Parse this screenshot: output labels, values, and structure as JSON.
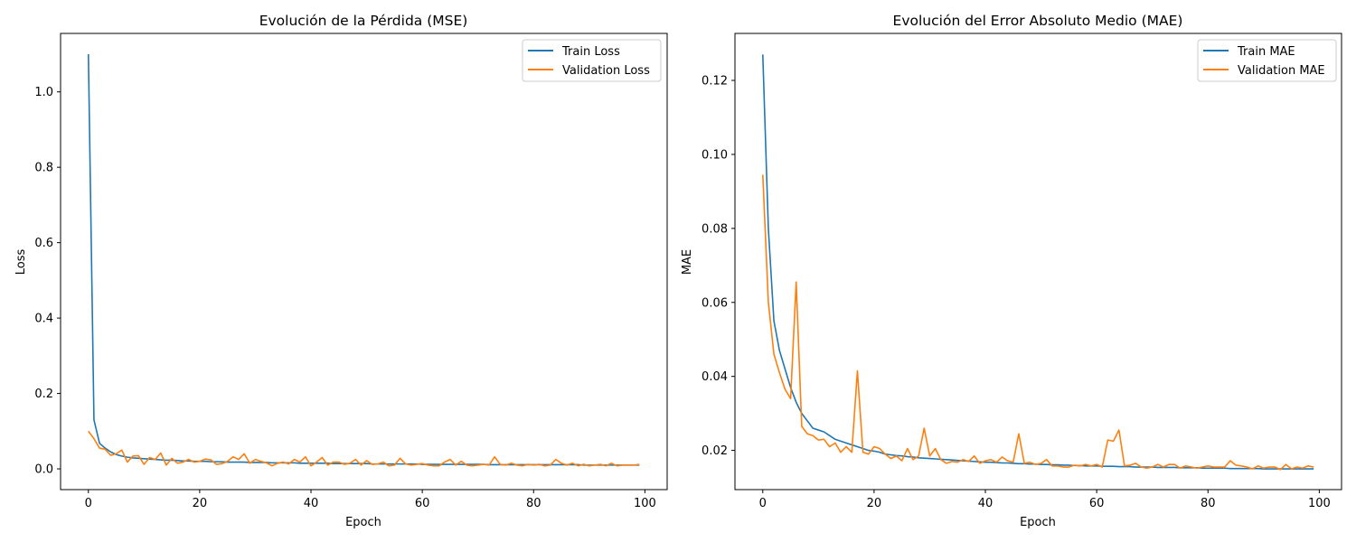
{
  "colors": {
    "train": "#1f77b4",
    "validation": "#ff7f0e"
  },
  "chart_data": [
    {
      "type": "line",
      "title": "Evolución de la Pérdida (MSE)",
      "xlabel": "Epoch",
      "ylabel": "Loss",
      "xlim": [
        -5,
        104
      ],
      "ylim": [
        -0.055,
        1.155
      ],
      "xticks": [
        0,
        20,
        40,
        60,
        80,
        100
      ],
      "xtick_labels": [
        "0",
        "20",
        "40",
        "60",
        "80",
        "100"
      ],
      "yticks": [
        0.0,
        0.2,
        0.4,
        0.6,
        0.8,
        1.0
      ],
      "ytick_labels": [
        "0.0",
        "0.2",
        "0.4",
        "0.6",
        "0.8",
        "1.0"
      ],
      "legend": "top-right",
      "grid": false,
      "x": [
        0,
        1,
        2,
        3,
        4,
        5,
        6,
        7,
        8,
        9,
        10,
        11,
        12,
        13,
        14,
        15,
        16,
        17,
        18,
        19,
        20,
        21,
        22,
        23,
        24,
        25,
        26,
        27,
        28,
        29,
        30,
        31,
        32,
        33,
        34,
        35,
        36,
        37,
        38,
        39,
        40,
        41,
        42,
        43,
        44,
        45,
        46,
        47,
        48,
        49,
        50,
        51,
        52,
        53,
        54,
        55,
        56,
        57,
        58,
        59,
        60,
        61,
        62,
        63,
        64,
        65,
        66,
        67,
        68,
        69,
        70,
        71,
        72,
        73,
        74,
        75,
        76,
        77,
        78,
        79,
        80,
        81,
        82,
        83,
        84,
        85,
        86,
        87,
        88,
        89,
        90,
        91,
        92,
        93,
        94,
        95,
        96,
        97,
        98,
        99
      ],
      "series": [
        {
          "name": "Train Loss",
          "values": [
            1.1,
            0.13,
            0.068,
            0.055,
            0.045,
            0.038,
            0.034,
            0.031,
            0.029,
            0.028,
            0.027,
            0.026,
            0.025,
            0.024,
            0.023,
            0.023,
            0.022,
            0.021,
            0.021,
            0.02,
            0.02,
            0.02,
            0.019,
            0.019,
            0.019,
            0.018,
            0.018,
            0.018,
            0.018,
            0.017,
            0.017,
            0.017,
            0.017,
            0.016,
            0.016,
            0.016,
            0.016,
            0.016,
            0.015,
            0.015,
            0.015,
            0.015,
            0.015,
            0.015,
            0.014,
            0.014,
            0.014,
            0.014,
            0.014,
            0.014,
            0.014,
            0.013,
            0.013,
            0.013,
            0.013,
            0.013,
            0.013,
            0.013,
            0.013,
            0.013,
            0.012,
            0.012,
            0.012,
            0.012,
            0.012,
            0.012,
            0.012,
            0.012,
            0.012,
            0.012,
            0.012,
            0.012,
            0.011,
            0.011,
            0.011,
            0.011,
            0.011,
            0.011,
            0.011,
            0.011,
            0.011,
            0.011,
            0.011,
            0.011,
            0.011,
            0.011,
            0.011,
            0.011,
            0.011,
            0.01,
            0.01,
            0.01,
            0.01,
            0.01,
            0.01,
            0.01,
            0.01,
            0.01,
            0.01,
            0.01
          ]
        },
        {
          "name": "Validation Loss",
          "values": [
            0.1,
            0.08,
            0.055,
            0.052,
            0.036,
            0.04,
            0.05,
            0.018,
            0.034,
            0.035,
            0.012,
            0.03,
            0.025,
            0.042,
            0.01,
            0.028,
            0.015,
            0.018,
            0.025,
            0.018,
            0.02,
            0.026,
            0.024,
            0.012,
            0.014,
            0.02,
            0.032,
            0.025,
            0.04,
            0.015,
            0.025,
            0.02,
            0.016,
            0.008,
            0.015,
            0.018,
            0.013,
            0.025,
            0.018,
            0.032,
            0.008,
            0.018,
            0.03,
            0.01,
            0.018,
            0.018,
            0.012,
            0.015,
            0.025,
            0.01,
            0.022,
            0.012,
            0.013,
            0.018,
            0.008,
            0.01,
            0.028,
            0.013,
            0.01,
            0.012,
            0.014,
            0.01,
            0.008,
            0.008,
            0.018,
            0.025,
            0.01,
            0.02,
            0.01,
            0.008,
            0.01,
            0.012,
            0.01,
            0.032,
            0.012,
            0.01,
            0.015,
            0.01,
            0.008,
            0.012,
            0.01,
            0.012,
            0.008,
            0.01,
            0.025,
            0.015,
            0.01,
            0.015,
            0.008,
            0.012,
            0.008,
            0.01,
            0.012,
            0.008,
            0.015,
            0.008,
            0.01,
            0.01,
            0.01,
            0.012
          ]
        }
      ]
    },
    {
      "type": "line",
      "title": "Evolución del Error Absoluto Medio (MAE)",
      "xlabel": "Epoch",
      "ylabel": "MAE",
      "xlim": [
        -5,
        104
      ],
      "ylim": [
        0.0094,
        0.1327
      ],
      "xticks": [
        0,
        20,
        40,
        60,
        80,
        100
      ],
      "xtick_labels": [
        "0",
        "20",
        "40",
        "60",
        "80",
        "100"
      ],
      "yticks": [
        0.02,
        0.04,
        0.06,
        0.08,
        0.1,
        0.12
      ],
      "ytick_labels": [
        "0.02",
        "0.04",
        "0.06",
        "0.08",
        "0.10",
        "0.12"
      ],
      "legend": "top-right",
      "grid": false,
      "x": [
        0,
        1,
        2,
        3,
        4,
        5,
        6,
        7,
        8,
        9,
        10,
        11,
        12,
        13,
        14,
        15,
        16,
        17,
        18,
        19,
        20,
        21,
        22,
        23,
        24,
        25,
        26,
        27,
        28,
        29,
        30,
        31,
        32,
        33,
        34,
        35,
        36,
        37,
        38,
        39,
        40,
        41,
        42,
        43,
        44,
        45,
        46,
        47,
        48,
        49,
        50,
        51,
        52,
        53,
        54,
        55,
        56,
        57,
        58,
        59,
        60,
        61,
        62,
        63,
        64,
        65,
        66,
        67,
        68,
        69,
        70,
        71,
        72,
        73,
        74,
        75,
        76,
        77,
        78,
        79,
        80,
        81,
        82,
        83,
        84,
        85,
        86,
        87,
        88,
        89,
        90,
        91,
        92,
        93,
        94,
        95,
        96,
        97,
        98,
        99
      ],
      "series": [
        {
          "name": "Train MAE",
          "values": [
            0.127,
            0.08,
            0.055,
            0.047,
            0.042,
            0.037,
            0.033,
            0.03,
            0.028,
            0.026,
            0.0255,
            0.025,
            0.024,
            0.023,
            0.0225,
            0.022,
            0.0215,
            0.021,
            0.0205,
            0.02,
            0.0198,
            0.0195,
            0.019,
            0.0188,
            0.0186,
            0.0185,
            0.0183,
            0.0182,
            0.018,
            0.0179,
            0.0178,
            0.0177,
            0.0176,
            0.0175,
            0.0174,
            0.0173,
            0.0172,
            0.0171,
            0.017,
            0.0169,
            0.0168,
            0.0168,
            0.0167,
            0.0166,
            0.0166,
            0.0165,
            0.0164,
            0.0164,
            0.0163,
            0.0163,
            0.0162,
            0.0162,
            0.0161,
            0.0161,
            0.016,
            0.016,
            0.0159,
            0.0159,
            0.0158,
            0.0158,
            0.0158,
            0.0157,
            0.0157,
            0.0157,
            0.0156,
            0.0156,
            0.0156,
            0.0155,
            0.0155,
            0.0155,
            0.0155,
            0.0154,
            0.0154,
            0.0154,
            0.0154,
            0.0153,
            0.0153,
            0.0153,
            0.0153,
            0.0152,
            0.0152,
            0.0152,
            0.0152,
            0.0152,
            0.0151,
            0.0151,
            0.0151,
            0.0151,
            0.0151,
            0.0151,
            0.015,
            0.015,
            0.015,
            0.015,
            0.015,
            0.015,
            0.015,
            0.015,
            0.015,
            0.015
          ]
        },
        {
          "name": "Validation MAE",
          "values": [
            0.0945,
            0.06,
            0.046,
            0.041,
            0.0365,
            0.034,
            0.0655,
            0.0265,
            0.0245,
            0.024,
            0.0228,
            0.023,
            0.021,
            0.022,
            0.0195,
            0.021,
            0.0195,
            0.0415,
            0.0195,
            0.019,
            0.021,
            0.0205,
            0.019,
            0.0178,
            0.0185,
            0.0172,
            0.0205,
            0.0175,
            0.0185,
            0.026,
            0.0185,
            0.0205,
            0.0175,
            0.0165,
            0.017,
            0.0168,
            0.0175,
            0.017,
            0.0185,
            0.0165,
            0.0172,
            0.0175,
            0.0168,
            0.0182,
            0.0172,
            0.0168,
            0.0245,
            0.0165,
            0.0168,
            0.0162,
            0.0165,
            0.0175,
            0.0158,
            0.0158,
            0.0155,
            0.0155,
            0.016,
            0.0158,
            0.0162,
            0.0158,
            0.0162,
            0.0155,
            0.0228,
            0.0225,
            0.0255,
            0.0158,
            0.016,
            0.0165,
            0.0155,
            0.0152,
            0.0155,
            0.0162,
            0.0155,
            0.0162,
            0.0162,
            0.0152,
            0.0158,
            0.0155,
            0.0152,
            0.0155,
            0.0158,
            0.0155,
            0.0155,
            0.0155,
            0.0172,
            0.016,
            0.0158,
            0.0155,
            0.015,
            0.0158,
            0.0152,
            0.0155,
            0.0155,
            0.0148,
            0.0162,
            0.015,
            0.0155,
            0.0152,
            0.0158,
            0.0155
          ]
        }
      ]
    }
  ]
}
